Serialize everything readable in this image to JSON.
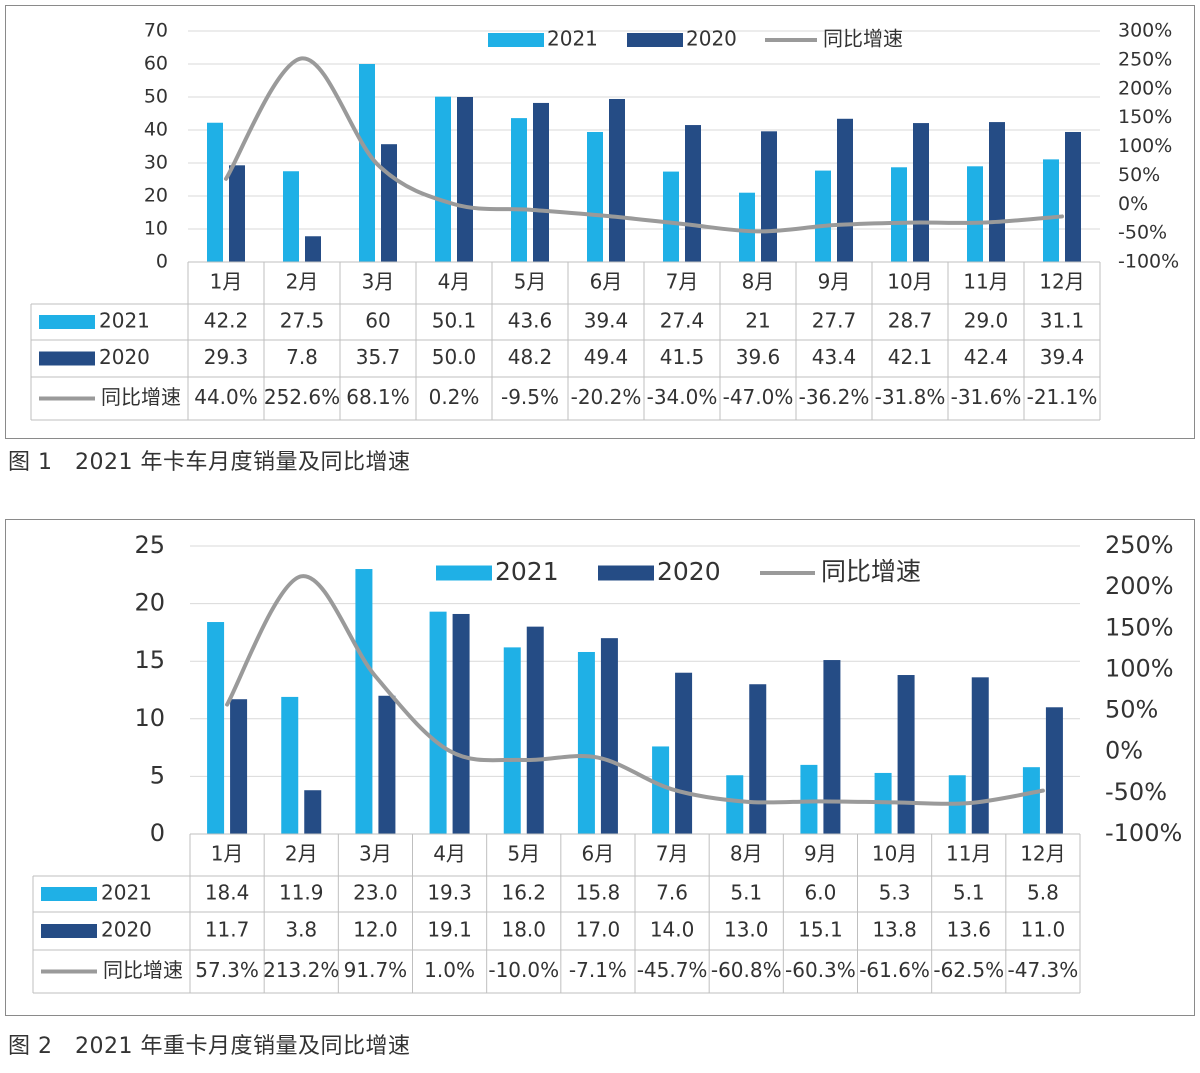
{
  "captions": {
    "fig1": "图 1　2021 年卡车月度销量及同比增速",
    "fig2": "图 2　2021 年重卡月度销量及同比增速"
  },
  "colors": {
    "s2021": "#1fb0e6",
    "s2020": "#254c85",
    "growth": "#9a9a9a",
    "grid": "#d9d9d9",
    "table_border": "#bfbfbf"
  },
  "chart_data": [
    {
      "type": "bar",
      "categories": [
        "1月",
        "2月",
        "3月",
        "4月",
        "5月",
        "6月",
        "7月",
        "8月",
        "9月",
        "10月",
        "11月",
        "12月"
      ],
      "series": [
        {
          "name": "2021",
          "kind": "bar",
          "axis": "left",
          "values": [
            42.2,
            27.5,
            60,
            50.1,
            43.6,
            39.4,
            27.4,
            21,
            27.7,
            28.7,
            29.0,
            31.1
          ],
          "labels": [
            "42.2",
            "27.5",
            "60",
            "50.1",
            "43.6",
            "39.4",
            "27.4",
            "21",
            "27.7",
            "28.7",
            "29.0",
            "31.1"
          ]
        },
        {
          "name": "2020",
          "kind": "bar",
          "axis": "left",
          "values": [
            29.3,
            7.8,
            35.7,
            50.0,
            48.2,
            49.4,
            41.5,
            39.6,
            43.4,
            42.1,
            42.4,
            39.4
          ],
          "labels": [
            "29.3",
            "7.8",
            "35.7",
            "50.0",
            "48.2",
            "49.4",
            "41.5",
            "39.6",
            "43.4",
            "42.1",
            "42.4",
            "39.4"
          ]
        },
        {
          "name": "同比增速",
          "kind": "line",
          "axis": "right",
          "values": [
            44.0,
            252.6,
            68.1,
            0.2,
            -9.5,
            -20.2,
            -34.0,
            -47.0,
            -36.2,
            -31.8,
            -31.6,
            -21.1
          ],
          "labels": [
            "44.0%",
            "252.6%",
            "68.1%",
            "0.2%",
            "-9.5%",
            "-20.2%",
            "-34.0%",
            "-47.0%",
            "-36.2%",
            "-31.8%",
            "-31.6%",
            "-21.1%"
          ]
        }
      ],
      "ylim": [
        0,
        70
      ],
      "yticks": [
        "0",
        "10",
        "20",
        "30",
        "40",
        "50",
        "60",
        "70"
      ],
      "y2lim": [
        -100,
        300
      ],
      "y2ticks": [
        "-100%",
        "-50%",
        "0%",
        "50%",
        "100%",
        "150%",
        "200%",
        "250%",
        "300%"
      ],
      "grid": true,
      "legend_position": "top-center",
      "data_table": true
    },
    {
      "type": "bar",
      "categories": [
        "1月",
        "2月",
        "3月",
        "4月",
        "5月",
        "6月",
        "7月",
        "8月",
        "9月",
        "10月",
        "11月",
        "12月"
      ],
      "series": [
        {
          "name": "2021",
          "kind": "bar",
          "axis": "left",
          "values": [
            18.4,
            11.9,
            23.0,
            19.3,
            16.2,
            15.8,
            7.6,
            5.1,
            6.0,
            5.3,
            5.1,
            5.8
          ],
          "labels": [
            "18.4",
            "11.9",
            "23.0",
            "19.3",
            "16.2",
            "15.8",
            "7.6",
            "5.1",
            "6.0",
            "5.3",
            "5.1",
            "5.8"
          ]
        },
        {
          "name": "2020",
          "kind": "bar",
          "axis": "left",
          "values": [
            11.7,
            3.8,
            12.0,
            19.1,
            18.0,
            17.0,
            14.0,
            13.0,
            15.1,
            13.8,
            13.6,
            11.0
          ],
          "labels": [
            "11.7",
            "3.8",
            "12.0",
            "19.1",
            "18.0",
            "17.0",
            "14.0",
            "13.0",
            "15.1",
            "13.8",
            "13.6",
            "11.0"
          ]
        },
        {
          "name": "同比增速",
          "kind": "line",
          "axis": "right",
          "values": [
            57.3,
            213.2,
            91.7,
            1.0,
            -10.0,
            -7.1,
            -45.7,
            -60.8,
            -60.3,
            -61.6,
            -62.5,
            -47.3
          ],
          "labels": [
            "57.3%",
            "213.2%",
            "91.7%",
            "1.0%",
            "-10.0%",
            "-7.1%",
            "-45.7%",
            "-60.8%",
            "-60.3%",
            "-61.6%",
            "-62.5%",
            "-47.3%"
          ]
        }
      ],
      "ylim": [
        0,
        25
      ],
      "yticks": [
        "0",
        "5",
        "10",
        "15",
        "20",
        "25"
      ],
      "y2lim": [
        -100,
        250
      ],
      "y2ticks": [
        "-100%",
        "-50%",
        "0%",
        "50%",
        "100%",
        "150%",
        "200%",
        "250%"
      ],
      "grid": true,
      "legend_position": "top-center",
      "data_table": true
    }
  ]
}
